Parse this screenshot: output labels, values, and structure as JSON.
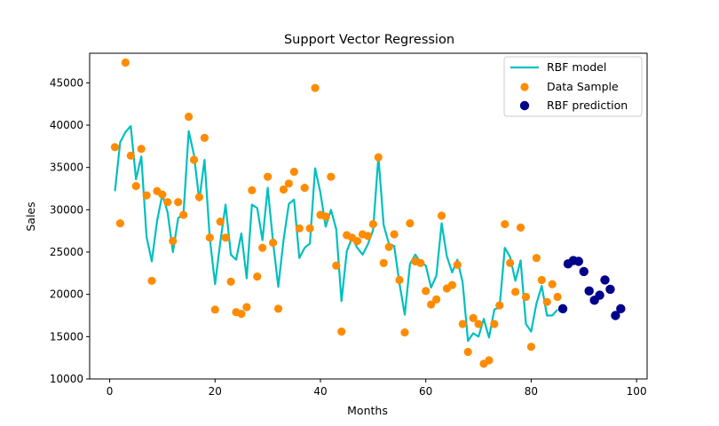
{
  "chart_data": {
    "type": "scatter",
    "title": "Support Vector Regression",
    "xlabel": "Months",
    "ylabel": "Sales",
    "xlim": [
      -3.8,
      102
    ],
    "ylim": [
      10000,
      48500
    ],
    "xticks": [
      0,
      20,
      40,
      60,
      80,
      100
    ],
    "yticks": [
      10000,
      15000,
      20000,
      25000,
      30000,
      35000,
      40000,
      45000
    ],
    "grid": false,
    "legend_position": "top-right",
    "colors": {
      "model": "#00bfbf",
      "sample": "#ff8c00",
      "prediction": "#00008b"
    },
    "series": [
      {
        "name": "RBF model",
        "kind": "line",
        "x": [
          1,
          2,
          3,
          4,
          5,
          6,
          7,
          8,
          9,
          10,
          11,
          12,
          13,
          14,
          15,
          16,
          17,
          18,
          19,
          20,
          21,
          22,
          23,
          24,
          25,
          26,
          27,
          28,
          29,
          30,
          31,
          32,
          33,
          34,
          35,
          36,
          37,
          38,
          39,
          40,
          41,
          42,
          43,
          44,
          45,
          46,
          47,
          48,
          49,
          50,
          51,
          52,
          53,
          54,
          55,
          56,
          57,
          58,
          59,
          60,
          61,
          62,
          63,
          64,
          65,
          66,
          67,
          68,
          69,
          70,
          71,
          72,
          73,
          74,
          75,
          76,
          77,
          78,
          79,
          80,
          81,
          82,
          83,
          84,
          85
        ],
        "y": [
          32200,
          38000,
          39200,
          39900,
          33600,
          36300,
          26800,
          23900,
          28700,
          31800,
          29700,
          25000,
          29000,
          29500,
          39300,
          36500,
          31100,
          35900,
          26700,
          21200,
          26200,
          30600,
          24700,
          24100,
          27200,
          21900,
          30600,
          30200,
          26400,
          32600,
          26200,
          20900,
          26400,
          30700,
          31200,
          24300,
          25500,
          26000,
          34900,
          32000,
          28000,
          30000,
          27700,
          19200,
          25100,
          26700,
          25500,
          24700,
          25900,
          27600,
          36300,
          28200,
          26000,
          25700,
          21300,
          17600,
          23600,
          24700,
          23800,
          23400,
          20800,
          22200,
          28400,
          24500,
          22600,
          24100,
          21400,
          14500,
          15400,
          15000,
          17100,
          14900,
          18200,
          18500,
          25500,
          24400,
          21600,
          24000,
          16500,
          15600,
          18900,
          21000,
          17500,
          17500,
          18200
        ]
      },
      {
        "name": "Data Sample",
        "kind": "scatter",
        "x": [
          1,
          2,
          3,
          4,
          5,
          6,
          7,
          8,
          9,
          10,
          11,
          12,
          13,
          14,
          15,
          16,
          17,
          18,
          19,
          20,
          21,
          22,
          23,
          24,
          25,
          26,
          27,
          28,
          29,
          30,
          31,
          32,
          33,
          34,
          35,
          36,
          37,
          38,
          39,
          40,
          41,
          42,
          43,
          44,
          45,
          46,
          47,
          48,
          49,
          50,
          51,
          52,
          53,
          54,
          55,
          56,
          57,
          58,
          59,
          60,
          61,
          62,
          63,
          64,
          65,
          66,
          67,
          68,
          69,
          70,
          71,
          72,
          73,
          74,
          75,
          76,
          77,
          78,
          79,
          80,
          81,
          82,
          83,
          84,
          85
        ],
        "y": [
          37400,
          28400,
          47400,
          36400,
          32800,
          37200,
          31700,
          21600,
          32200,
          31800,
          30900,
          26300,
          30900,
          29400,
          41000,
          35900,
          31500,
          38500,
          26700,
          18200,
          28600,
          26700,
          21500,
          17900,
          17700,
          18500,
          32300,
          22100,
          25500,
          33900,
          26100,
          18300,
          32400,
          33100,
          34500,
          27800,
          32600,
          27800,
          44400,
          29400,
          29200,
          33900,
          23400,
          15600,
          27000,
          26700,
          26300,
          27100,
          26900,
          28300,
          36200,
          23700,
          25600,
          27100,
          21700,
          15500,
          28400,
          23900,
          23700,
          20400,
          18800,
          19400,
          29300,
          20700,
          21100,
          23500,
          16500,
          13200,
          17200,
          16500,
          11800,
          12200,
          16500,
          18700,
          28300,
          23700,
          20300,
          27900,
          19700,
          13800,
          24300,
          21700,
          19100,
          21200,
          19700
        ]
      },
      {
        "name": "RBF prediction",
        "kind": "scatter",
        "x": [
          86,
          87,
          88,
          89,
          90,
          91,
          92,
          93,
          94,
          95,
          96,
          97
        ],
        "y": [
          18300,
          23600,
          24000,
          23900,
          22700,
          20400,
          19300,
          19900,
          21700,
          20600,
          17500,
          18300
        ]
      }
    ]
  }
}
